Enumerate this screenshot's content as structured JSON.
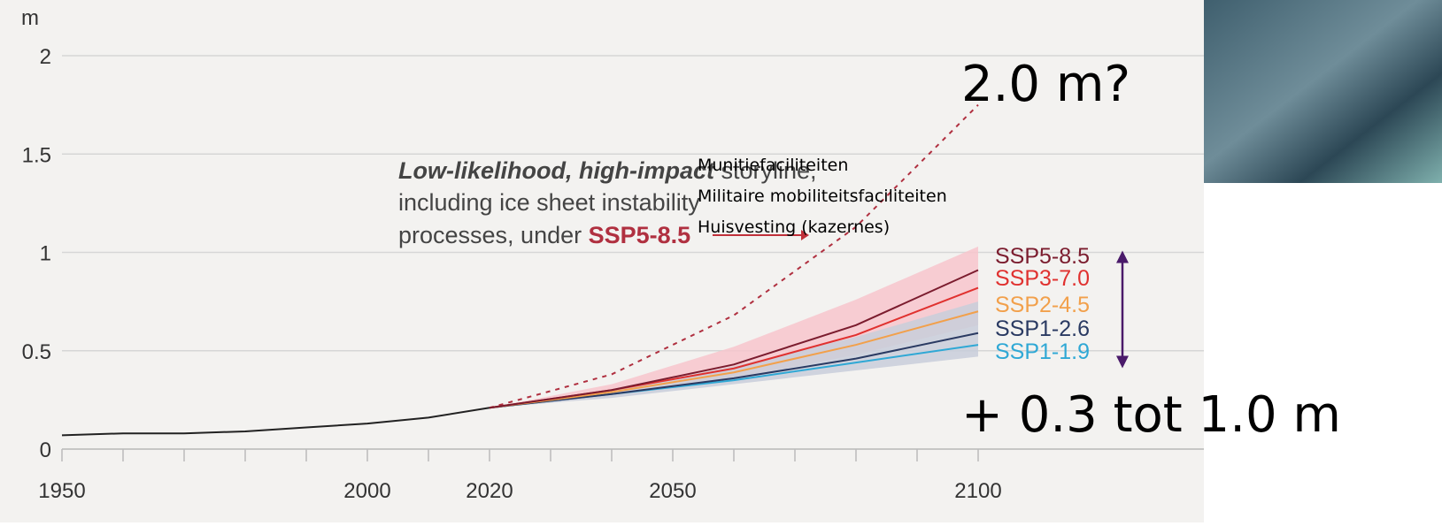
{
  "chart_data": {
    "type": "line",
    "y_unit": "m",
    "xlim": [
      1950,
      2100
    ],
    "ylim": [
      0,
      2
    ],
    "xticks": [
      1950,
      2000,
      2020,
      2050,
      2100
    ],
    "xminor_ticks": [
      1950,
      1960,
      1970,
      1980,
      1990,
      2000,
      2010,
      2020,
      2030,
      2040,
      2050,
      2060,
      2070,
      2080,
      2090,
      2100
    ],
    "yticks": [
      0,
      0.5,
      1,
      1.5,
      2
    ],
    "grid": true,
    "historical": {
      "color": "#222222",
      "x": [
        1950,
        1960,
        1970,
        1980,
        1990,
        2000,
        2010,
        2020
      ],
      "values": [
        0.07,
        0.08,
        0.08,
        0.09,
        0.11,
        0.13,
        0.16,
        0.21
      ]
    },
    "bands": [
      {
        "color": "#f7c6cd",
        "x": [
          2020,
          2040,
          2060,
          2080,
          2100
        ],
        "low": [
          0.21,
          0.27,
          0.36,
          0.48,
          0.63
        ],
        "high": [
          0.21,
          0.33,
          0.52,
          0.76,
          1.03
        ]
      },
      {
        "color": "#c8cedb",
        "x": [
          2020,
          2040,
          2060,
          2080,
          2100
        ],
        "low": [
          0.21,
          0.26,
          0.33,
          0.4,
          0.47
        ],
        "high": [
          0.21,
          0.3,
          0.42,
          0.57,
          0.75
        ]
      }
    ],
    "x": [
      2020,
      2040,
      2060,
      2080,
      2100
    ],
    "series": [
      {
        "name": "SSP5-8.5",
        "color": "#7b1c2e",
        "values": [
          0.21,
          0.3,
          0.43,
          0.63,
          0.91
        ]
      },
      {
        "name": "SSP3-7.0",
        "color": "#e0312f",
        "values": [
          0.21,
          0.3,
          0.41,
          0.58,
          0.82
        ]
      },
      {
        "name": "SSP2-4.5",
        "color": "#f2a04b",
        "values": [
          0.21,
          0.29,
          0.39,
          0.53,
          0.7
        ]
      },
      {
        "name": "SSP1-2.6",
        "color": "#2a3a62",
        "values": [
          0.21,
          0.28,
          0.36,
          0.46,
          0.59
        ]
      },
      {
        "name": "SSP1-1.9",
        "color": "#2fa8d5",
        "values": [
          0.21,
          0.28,
          0.35,
          0.44,
          0.53
        ]
      }
    ],
    "storyline": {
      "color": "#b03040",
      "x": [
        2020,
        2040,
        2060,
        2080,
        2100
      ],
      "values": [
        0.21,
        0.38,
        0.68,
        1.13,
        1.75
      ]
    },
    "annotation": {
      "emphasis": "Low-likelihood, high-impact",
      "line1": " storyline,",
      "line2": "including ice sheet instability",
      "line3": "processes, under ",
      "scenario": "SSP5-8.5"
    },
    "range_arrow": {
      "color": "#4a1a6a",
      "from": 1.0,
      "to": 0.42
    }
  },
  "overlay": {
    "items": [
      "Munitiefaciliteiten",
      "Militaire mobiliteitsfaciliteiten",
      "Huisvesting (kazernes)"
    ],
    "upper_label": "2.0 m?",
    "range_label": "+ 0.3 tot 1.0 m"
  }
}
